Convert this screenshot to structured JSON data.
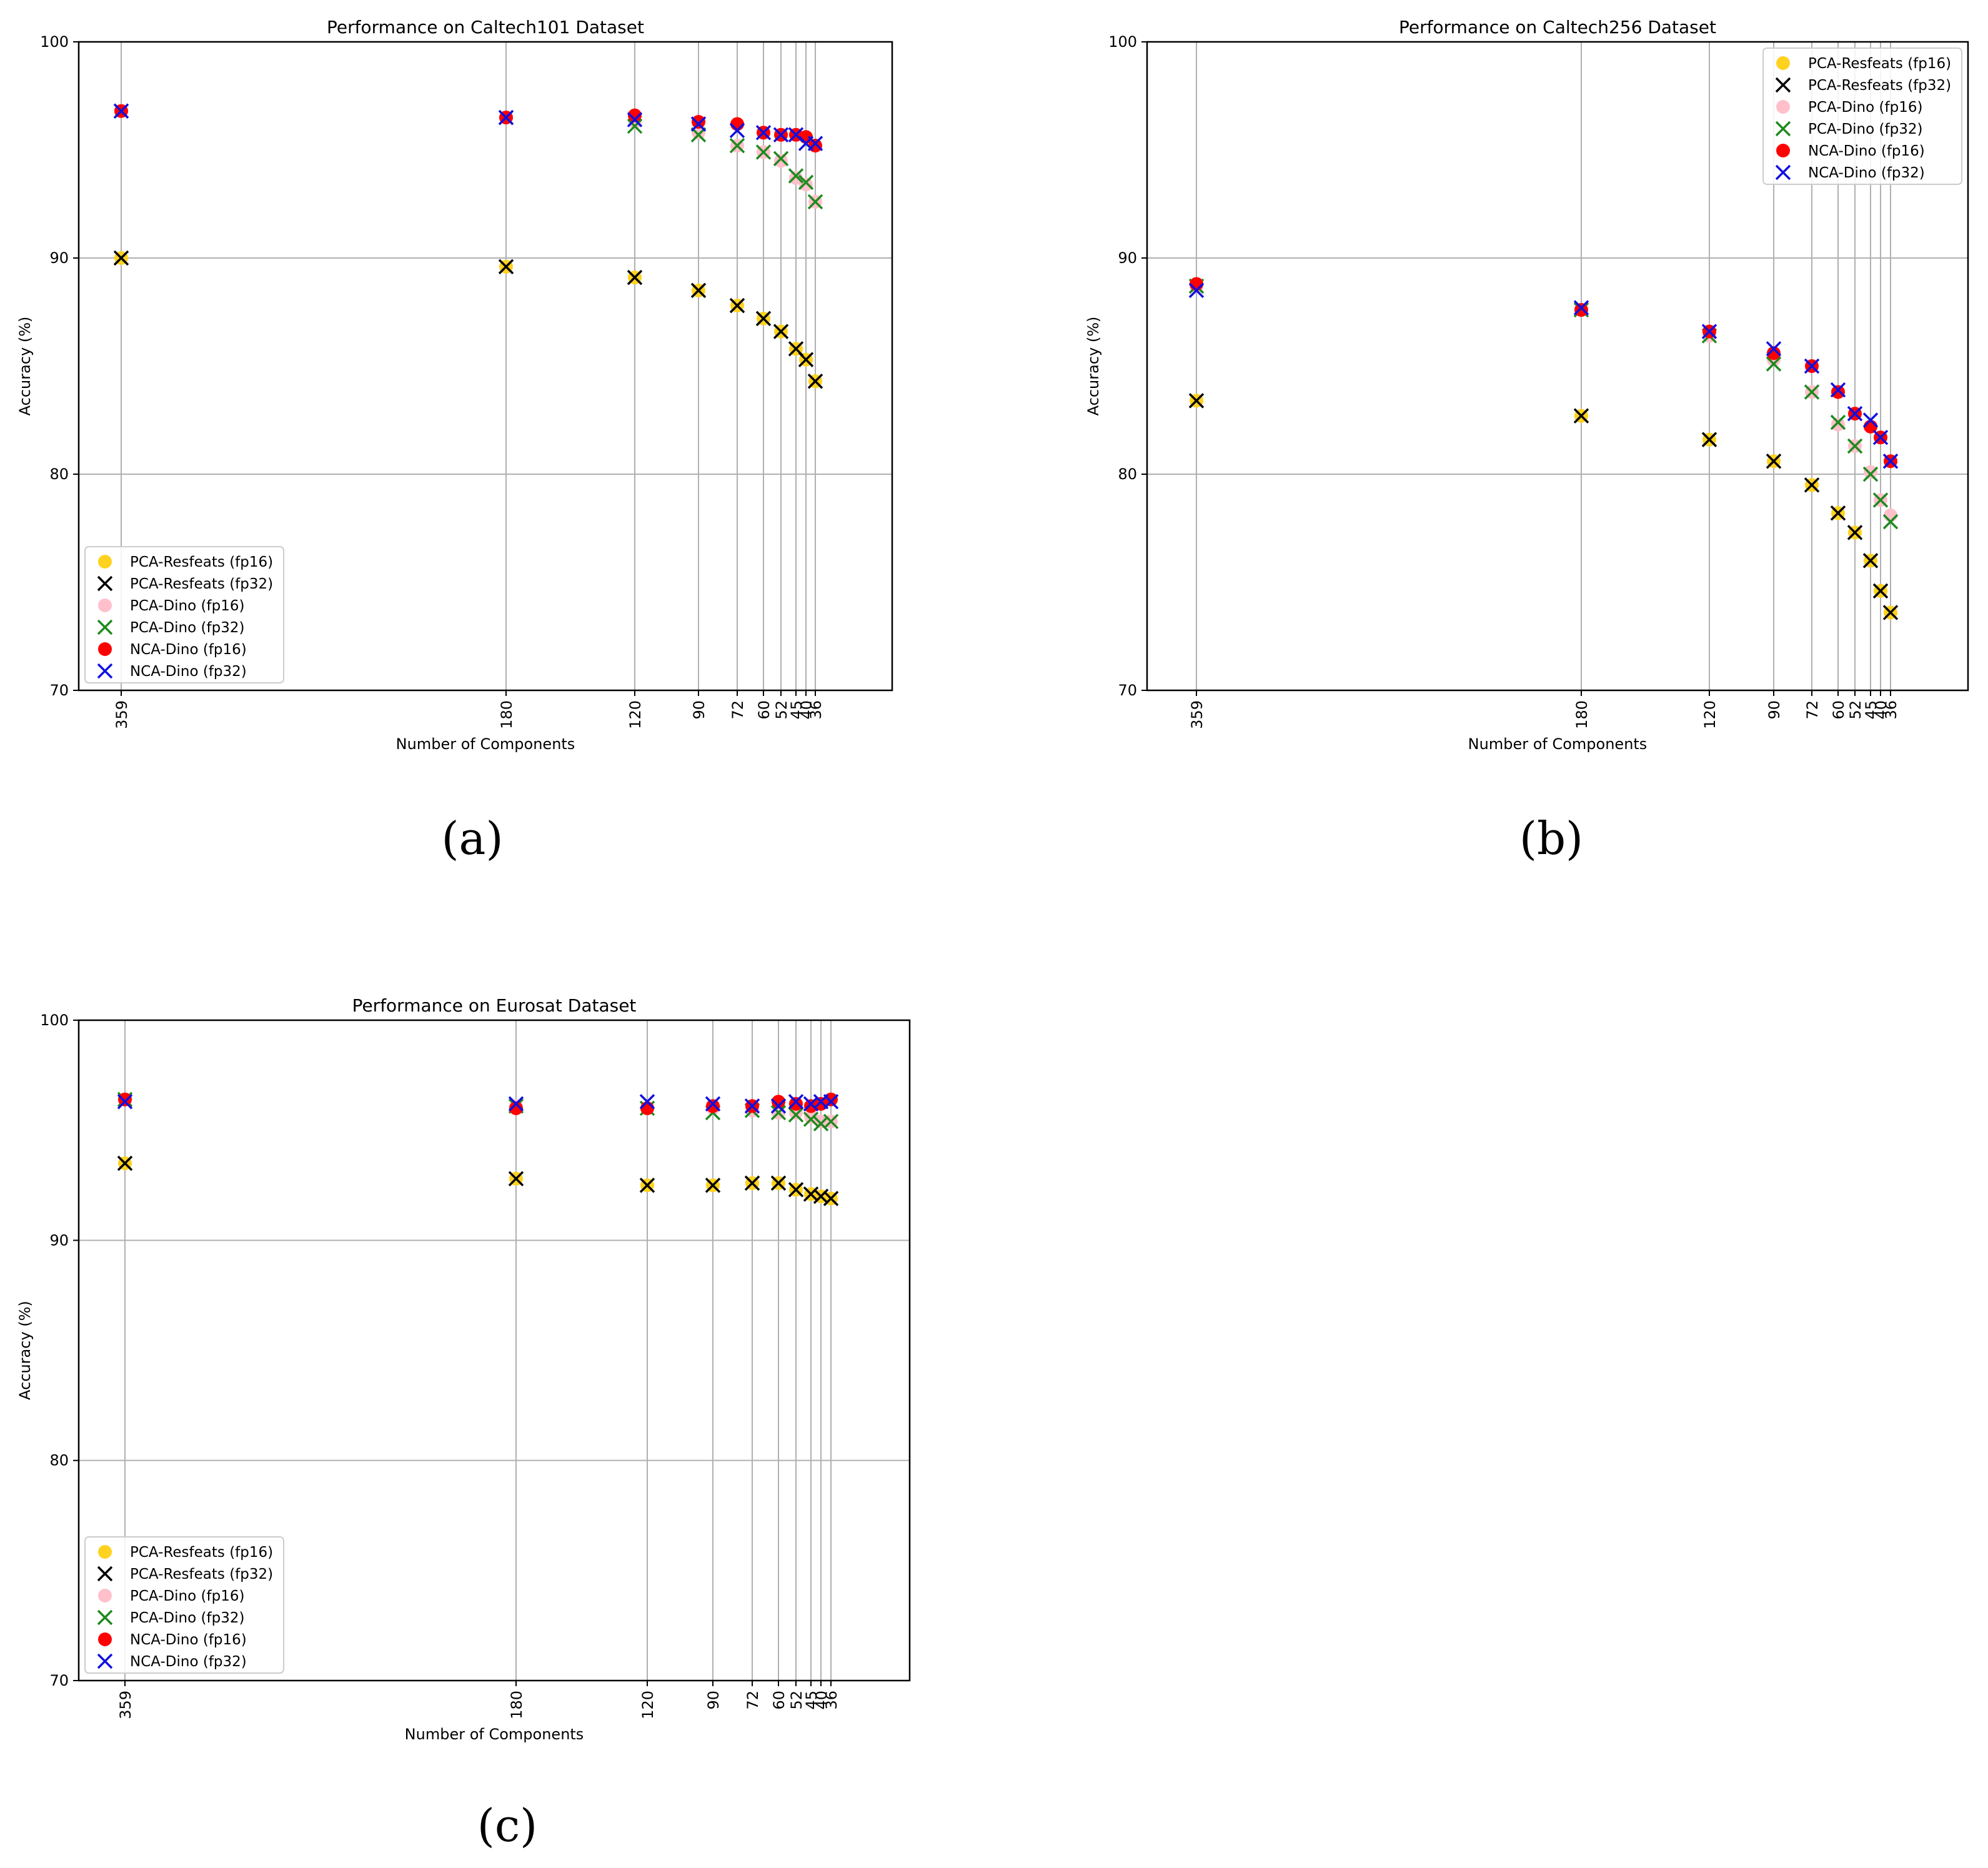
{
  "chart_data": [
    {
      "type": "scatter",
      "title": "Performance on Caltech101 Dataset",
      "xlabel": "Number of Components",
      "ylabel": "Accuracy (%)",
      "ylim": [
        70,
        100
      ],
      "yticks": [
        70,
        80,
        90,
        100
      ],
      "x_ticks": [
        "359",
        "180",
        "120",
        "90",
        "72",
        "60",
        "52",
        "45",
        "40",
        "36"
      ],
      "legend_position": "lower-left",
      "caption": "(a)",
      "series": [
        {
          "name": "PCA-Resfeats (fp16)",
          "marker": "circle",
          "color": "#ffd21f",
          "values": [
            90.0,
            89.6,
            89.1,
            88.5,
            87.8,
            87.2,
            86.6,
            85.8,
            85.3,
            84.3
          ]
        },
        {
          "name": "PCA-Resfeats (fp32)",
          "marker": "x",
          "color": "#000000",
          "values": [
            90.0,
            89.6,
            89.1,
            88.5,
            87.8,
            87.2,
            86.6,
            85.8,
            85.3,
            84.3
          ]
        },
        {
          "name": "PCA-Dino (fp16)",
          "marker": "circle",
          "color": "#ffc0cb",
          "values": [
            96.8,
            96.5,
            96.3,
            95.8,
            95.2,
            94.9,
            94.5,
            93.7,
            93.4,
            92.6
          ]
        },
        {
          "name": "PCA-Dino (fp32)",
          "marker": "x",
          "color": "#1e8a1e",
          "values": [
            96.8,
            96.5,
            96.1,
            95.7,
            95.2,
            94.9,
            94.6,
            93.8,
            93.5,
            92.6
          ]
        },
        {
          "name": "NCA-Dino (fp16)",
          "marker": "circle",
          "color": "#ff0000",
          "values": [
            96.8,
            96.5,
            96.6,
            96.3,
            96.2,
            95.8,
            95.7,
            95.7,
            95.6,
            95.2
          ]
        },
        {
          "name": "NCA-Dino (fp32)",
          "marker": "x",
          "color": "#1010e0",
          "values": [
            96.8,
            96.5,
            96.4,
            96.2,
            95.9,
            95.8,
            95.7,
            95.7,
            95.3,
            95.3
          ]
        }
      ]
    },
    {
      "type": "scatter",
      "title": "Performance on Caltech256 Dataset",
      "xlabel": "Number of Components",
      "ylabel": "Accuracy (%)",
      "ylim": [
        70,
        100
      ],
      "yticks": [
        70,
        80,
        90,
        100
      ],
      "x_ticks": [
        "359",
        "180",
        "120",
        "90",
        "72",
        "60",
        "52",
        "45",
        "40",
        "36"
      ],
      "legend_position": "upper-right",
      "caption": "(b)",
      "series": [
        {
          "name": "PCA-Resfeats (fp16)",
          "marker": "circle",
          "color": "#ffd21f",
          "values": [
            83.4,
            82.7,
            81.6,
            80.6,
            79.5,
            78.2,
            77.3,
            76.0,
            74.6,
            73.6
          ]
        },
        {
          "name": "PCA-Resfeats (fp32)",
          "marker": "x",
          "color": "#000000",
          "values": [
            83.4,
            82.7,
            81.6,
            80.6,
            79.5,
            78.2,
            77.3,
            76.0,
            74.6,
            73.6
          ]
        },
        {
          "name": "PCA-Dino (fp16)",
          "marker": "circle",
          "color": "#ffc0cb",
          "values": [
            88.7,
            87.6,
            86.4,
            85.3,
            83.8,
            82.3,
            81.3,
            80.1,
            78.8,
            78.1
          ]
        },
        {
          "name": "PCA-Dino (fp32)",
          "marker": "x",
          "color": "#1e8a1e",
          "values": [
            88.7,
            87.6,
            86.4,
            85.1,
            83.8,
            82.4,
            81.3,
            80.0,
            78.8,
            77.8
          ]
        },
        {
          "name": "NCA-Dino (fp16)",
          "marker": "circle",
          "color": "#ff0000",
          "values": [
            88.8,
            87.6,
            86.6,
            85.6,
            85.0,
            83.8,
            82.8,
            82.2,
            81.7,
            80.6
          ]
        },
        {
          "name": "NCA-Dino (fp32)",
          "marker": "x",
          "color": "#1010e0",
          "values": [
            88.5,
            87.7,
            86.6,
            85.8,
            85.0,
            83.9,
            82.8,
            82.5,
            81.7,
            80.6
          ]
        }
      ]
    },
    {
      "type": "scatter",
      "title": "Performance on Eurosat Dataset",
      "xlabel": "Number of Components",
      "ylabel": "Accuracy (%)",
      "ylim": [
        70,
        100
      ],
      "yticks": [
        70,
        80,
        90,
        100
      ],
      "x_ticks": [
        "359",
        "180",
        "120",
        "90",
        "72",
        "60",
        "52",
        "45",
        "40",
        "36"
      ],
      "legend_position": "lower-left",
      "caption": "(c)",
      "series": [
        {
          "name": "PCA-Resfeats (fp16)",
          "marker": "circle",
          "color": "#ffd21f",
          "values": [
            93.5,
            92.8,
            92.5,
            92.5,
            92.6,
            92.6,
            92.3,
            92.1,
            92.0,
            91.9
          ]
        },
        {
          "name": "PCA-Resfeats (fp32)",
          "marker": "x",
          "color": "#000000",
          "values": [
            93.5,
            92.8,
            92.5,
            92.5,
            92.6,
            92.6,
            92.3,
            92.1,
            92.0,
            91.9
          ]
        },
        {
          "name": "PCA-Dino (fp16)",
          "marker": "circle",
          "color": "#ffc0cb",
          "values": [
            96.4,
            96.1,
            96.0,
            96.0,
            95.9,
            95.8,
            95.8,
            95.6,
            95.4,
            95.4
          ]
        },
        {
          "name": "PCA-Dino (fp32)",
          "marker": "x",
          "color": "#1e8a1e",
          "values": [
            96.4,
            96.1,
            96.0,
            95.8,
            95.9,
            95.8,
            95.7,
            95.5,
            95.3,
            95.4
          ]
        },
        {
          "name": "NCA-Dino (fp16)",
          "marker": "circle",
          "color": "#ff0000",
          "values": [
            96.4,
            96.0,
            96.0,
            96.1,
            96.1,
            96.3,
            96.2,
            96.1,
            96.2,
            96.4
          ]
        },
        {
          "name": "NCA-Dino (fp32)",
          "marker": "x",
          "color": "#1010e0",
          "values": [
            96.3,
            96.2,
            96.3,
            96.2,
            96.1,
            96.1,
            96.3,
            96.2,
            96.3,
            96.3
          ]
        }
      ]
    }
  ]
}
